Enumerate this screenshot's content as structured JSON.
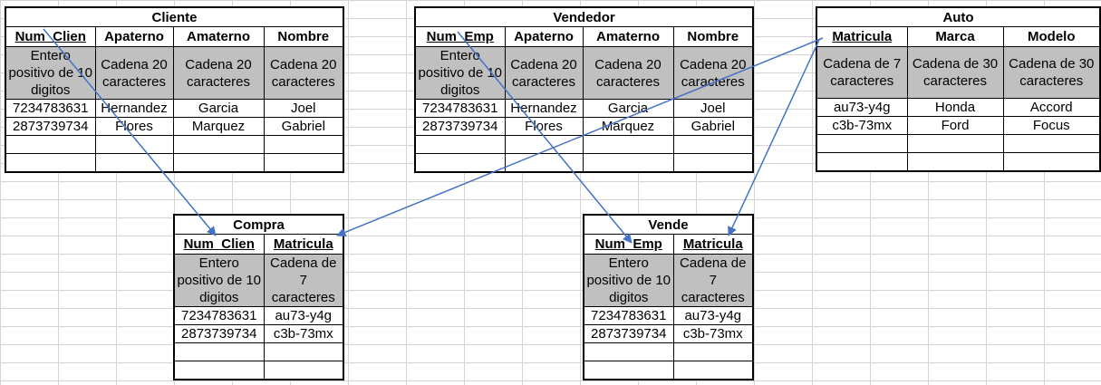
{
  "tables": {
    "cliente": {
      "title": "Cliente",
      "headers": [
        "Num_Clien",
        "Apaterno",
        "Amaterno",
        "Nombre"
      ],
      "desc": [
        "Entero positivo de 10 digitos",
        "Cadena 20 caracteres",
        "Cadena 20 caracteres",
        "Cadena 20 caracteres"
      ],
      "rows": [
        [
          "7234783631",
          "Hernandez",
          "Garcia",
          "Joel"
        ],
        [
          "2873739734",
          "Flores",
          "Marquez",
          "Gabriel"
        ],
        [
          "",
          "",
          "",
          ""
        ],
        [
          "",
          "",
          "",
          ""
        ]
      ]
    },
    "vendedor": {
      "title": "Vendedor",
      "headers": [
        "Num_Emp",
        "Apaterno",
        "Amaterno",
        "Nombre"
      ],
      "desc": [
        "Entero positivo de 10 digitos",
        "Cadena 20 caracteres",
        "Cadena 20 caracteres",
        "Cadena 20 caracteres"
      ],
      "rows": [
        [
          "7234783631",
          "Hernandez",
          "Garcia",
          "Joel"
        ],
        [
          "2873739734",
          "Flores",
          "Marquez",
          "Gabriel"
        ],
        [
          "",
          "",
          "",
          ""
        ],
        [
          "",
          "",
          "",
          ""
        ]
      ]
    },
    "auto": {
      "title": "Auto",
      "headers": [
        "Matricula",
        "Marca",
        "Modelo"
      ],
      "desc": [
        "Cadena de 7 caracteres",
        "Cadena de 30 caracteres",
        "Cadena de 30 caracteres"
      ],
      "rows": [
        [
          "au73-y4g",
          "Honda",
          "Accord"
        ],
        [
          "c3b-73mx",
          "Ford",
          "Focus"
        ],
        [
          "",
          "",
          ""
        ],
        [
          "",
          "",
          ""
        ]
      ]
    },
    "compra": {
      "title": "Compra",
      "headers": [
        "Num_Clien",
        "Matricula"
      ],
      "desc": [
        "Entero positivo de 10 digitos",
        "Cadena de 7 caracteres"
      ],
      "rows": [
        [
          "7234783631",
          "au73-y4g"
        ],
        [
          "2873739734",
          "c3b-73mx"
        ],
        [
          "",
          ""
        ],
        [
          "",
          ""
        ]
      ]
    },
    "vende": {
      "title": "Vende",
      "headers": [
        "Num_Emp",
        "Matricula"
      ],
      "desc": [
        "Entero positivo de 10 digitos",
        "Cadena de 7 caracteres"
      ],
      "rows": [
        [
          "7234783631",
          "au73-y4g"
        ],
        [
          "2873739734",
          "c3b-73mx"
        ],
        [
          "",
          ""
        ],
        [
          "",
          ""
        ]
      ]
    }
  },
  "colors": {
    "desc_fill": "#c0c0c0",
    "arrow": "#4472c4",
    "grid": "#d4d4d4"
  }
}
